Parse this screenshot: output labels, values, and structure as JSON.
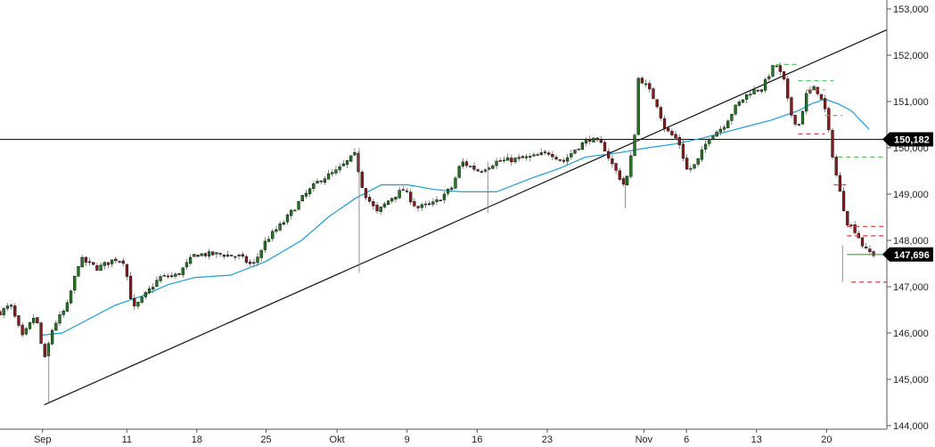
{
  "chart_data": {
    "type": "candlestick",
    "title": "",
    "xlabel": "",
    "ylabel": "",
    "ylim": [
      144000,
      153000
    ],
    "y_ticks": [
      144000,
      145000,
      146000,
      147000,
      148000,
      149000,
      150000,
      151000,
      152000,
      153000
    ],
    "y_tick_labels": [
      "144,000",
      "145,000",
      "146,000",
      "147,000",
      "148,000",
      "149,000",
      "150,000",
      "151,000",
      "152,000",
      "153,000"
    ],
    "x_tick_labels": [
      "Sep",
      "11",
      "18",
      "25",
      "Okt",
      "9",
      "16",
      "23",
      "Nov",
      "6",
      "13",
      "20"
    ],
    "grid": false,
    "colors": {
      "up": "#1f7a1f",
      "down": "#8b1a1a",
      "moving_average": "#1a9fd6",
      "trendline": "#111111",
      "horizontal_level": "#111111",
      "last_price_line": "#2ea82e",
      "badge": "#000000",
      "dash_green": "#5cc45c",
      "dash_red": "#d24a4a"
    },
    "horizontal_level": {
      "value": 150182,
      "label": "150,182"
    },
    "last_price": {
      "value": 147696,
      "label": "147,696"
    },
    "trendline": {
      "start": [
        0.05,
        144450
      ],
      "end": [
        1.0,
        152550
      ]
    },
    "close_path": [
      [
        0.0,
        146450
      ],
      [
        0.012,
        146600
      ],
      [
        0.025,
        145900
      ],
      [
        0.04,
        146400
      ],
      [
        0.05,
        145400
      ],
      [
        0.06,
        146150
      ],
      [
        0.075,
        146550
      ],
      [
        0.09,
        147600
      ],
      [
        0.11,
        147400
      ],
      [
        0.13,
        147600
      ],
      [
        0.14,
        147550
      ],
      [
        0.15,
        146500
      ],
      [
        0.165,
        146850
      ],
      [
        0.18,
        147200
      ],
      [
        0.2,
        147250
      ],
      [
        0.22,
        147700
      ],
      [
        0.25,
        147700
      ],
      [
        0.27,
        147650
      ],
      [
        0.285,
        147450
      ],
      [
        0.3,
        148000
      ],
      [
        0.32,
        148400
      ],
      [
        0.34,
        148900
      ],
      [
        0.36,
        149300
      ],
      [
        0.38,
        149500
      ],
      [
        0.4,
        149850
      ],
      [
        0.41,
        149050
      ],
      [
        0.425,
        148600
      ],
      [
        0.44,
        148900
      ],
      [
        0.455,
        149100
      ],
      [
        0.47,
        148700
      ],
      [
        0.49,
        148800
      ],
      [
        0.51,
        149150
      ],
      [
        0.52,
        149700
      ],
      [
        0.54,
        149500
      ],
      [
        0.56,
        149700
      ],
      [
        0.58,
        149750
      ],
      [
        0.6,
        149800
      ],
      [
        0.62,
        149900
      ],
      [
        0.635,
        149700
      ],
      [
        0.65,
        150000
      ],
      [
        0.665,
        150200
      ],
      [
        0.68,
        150050
      ],
      [
        0.69,
        149650
      ],
      [
        0.705,
        149150
      ],
      [
        0.715,
        150150
      ],
      [
        0.72,
        151550
      ],
      [
        0.73,
        151300
      ],
      [
        0.74,
        150980
      ],
      [
        0.75,
        150400
      ],
      [
        0.765,
        150150
      ],
      [
        0.775,
        149500
      ],
      [
        0.785,
        149650
      ],
      [
        0.8,
        150250
      ],
      [
        0.815,
        150450
      ],
      [
        0.83,
        150900
      ],
      [
        0.845,
        151200
      ],
      [
        0.86,
        151300
      ],
      [
        0.87,
        151700
      ],
      [
        0.875,
        151800
      ],
      [
        0.885,
        151400
      ],
      [
        0.89,
        150800
      ],
      [
        0.9,
        150450
      ],
      [
        0.91,
        151200
      ],
      [
        0.92,
        151300
      ],
      [
        0.93,
        150850
      ],
      [
        0.94,
        149700
      ],
      [
        0.945,
        149200
      ],
      [
        0.955,
        148400
      ],
      [
        0.965,
        148200
      ],
      [
        0.975,
        147800
      ],
      [
        0.985,
        147700
      ]
    ],
    "moving_average": [
      [
        0.045,
        145950
      ],
      [
        0.07,
        146000
      ],
      [
        0.1,
        146300
      ],
      [
        0.13,
        146600
      ],
      [
        0.16,
        146800
      ],
      [
        0.19,
        147050
      ],
      [
        0.22,
        147200
      ],
      [
        0.26,
        147250
      ],
      [
        0.3,
        147550
      ],
      [
        0.34,
        148000
      ],
      [
        0.37,
        148500
      ],
      [
        0.4,
        148900
      ],
      [
        0.43,
        149200
      ],
      [
        0.46,
        149200
      ],
      [
        0.49,
        149100
      ],
      [
        0.52,
        149050
      ],
      [
        0.56,
        149050
      ],
      [
        0.6,
        149350
      ],
      [
        0.63,
        149550
      ],
      [
        0.66,
        149800
      ],
      [
        0.7,
        149900
      ],
      [
        0.73,
        150000
      ],
      [
        0.76,
        150080
      ],
      [
        0.79,
        150200
      ],
      [
        0.82,
        150350
      ],
      [
        0.85,
        150500
      ],
      [
        0.87,
        150600
      ],
      [
        0.885,
        150700
      ],
      [
        0.9,
        150800
      ],
      [
        0.915,
        150950
      ],
      [
        0.93,
        151050
      ],
      [
        0.945,
        150950
      ],
      [
        0.96,
        150800
      ],
      [
        0.97,
        150600
      ],
      [
        0.98,
        150400
      ]
    ],
    "dashed_levels": [
      {
        "x": [
          0.875,
          0.9
        ],
        "value": 151800,
        "color": "green"
      },
      {
        "x": [
          0.9,
          0.94
        ],
        "value": 151450,
        "color": "green"
      },
      {
        "x": [
          0.91,
          0.93
        ],
        "value": 151250,
        "color": "red"
      },
      {
        "x": [
          0.93,
          0.95
        ],
        "value": 150700,
        "color": "green"
      },
      {
        "x": [
          0.9,
          0.93
        ],
        "value": 150300,
        "color": "red"
      },
      {
        "x": [
          0.945,
          1.0
        ],
        "value": 149800,
        "color": "green"
      },
      {
        "x": [
          0.94,
          0.955
        ],
        "value": 149200,
        "color": "red"
      },
      {
        "x": [
          0.955,
          1.0
        ],
        "value": 148300,
        "color": "red"
      },
      {
        "x": [
          0.955,
          1.0
        ],
        "value": 148100,
        "color": "red"
      },
      {
        "x": [
          0.96,
          1.0
        ],
        "value": 147100,
        "color": "red"
      }
    ]
  }
}
